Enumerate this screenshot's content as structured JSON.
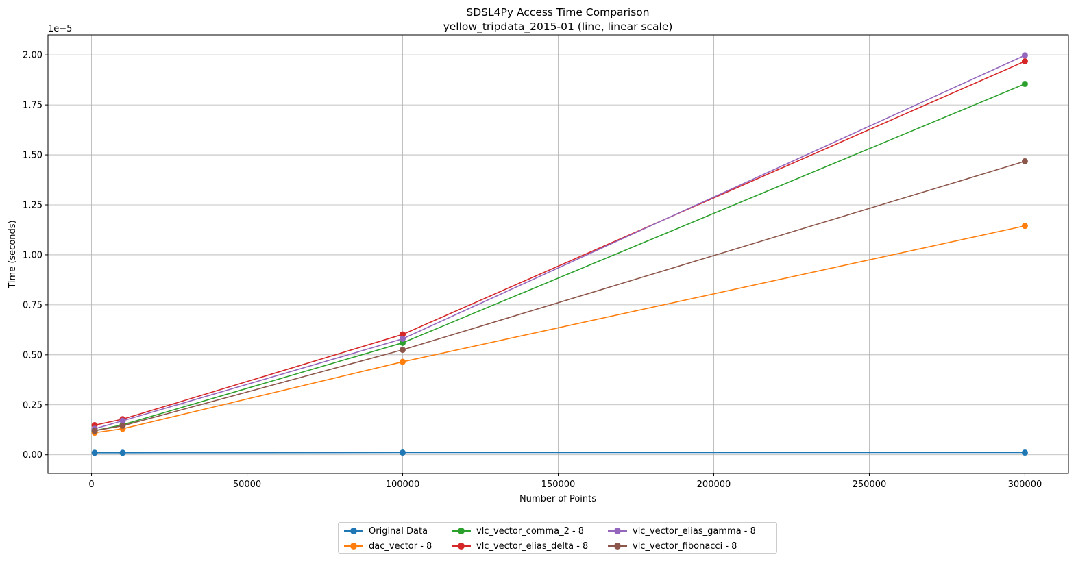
{
  "chart_data": {
    "type": "line",
    "title": "SDSL4Py Access Time Comparison",
    "subtitle": "yellow_tripdata_2015-01 (line, linear scale)",
    "xlabel": "Number of Points",
    "ylabel": "Time (seconds)",
    "y_offset_text": "1e−5",
    "x": [
      1000,
      10000,
      100000,
      300000
    ],
    "xlim": [
      -14000,
      314000
    ],
    "ylim": [
      -9.35e-07,
      2.1e-05
    ],
    "xticks": [
      0,
      50000,
      100000,
      150000,
      200000,
      250000,
      300000
    ],
    "xtick_labels": [
      "0",
      "50000",
      "100000",
      "150000",
      "200000",
      "250000",
      "300000"
    ],
    "yticks": [
      0,
      2.5e-06,
      5e-06,
      7.5e-06,
      1e-05,
      1.25e-05,
      1.5e-05,
      1.75e-05,
      2e-05
    ],
    "ytick_labels": [
      "0.00",
      "0.25",
      "0.50",
      "0.75",
      "1.00",
      "1.25",
      "1.50",
      "1.75",
      "2.00"
    ],
    "grid": true,
    "legend_position": "bottom-center",
    "series": [
      {
        "name": "Original Data",
        "color": "#1f77b4",
        "values": [
          1e-07,
          1e-07,
          1.1e-07,
          1.1e-07
        ]
      },
      {
        "name": "dac_vector - 8",
        "color": "#ff7f0e",
        "values": [
          1.1e-06,
          1.3e-06,
          4.65e-06,
          1.145e-05
        ]
      },
      {
        "name": "vlc_vector_comma_2 - 8",
        "color": "#2ca02c",
        "values": [
          1.2e-06,
          1.5e-06,
          5.6e-06,
          1.855e-05
        ]
      },
      {
        "name": "vlc_vector_elias_delta - 8",
        "color": "#d62728",
        "values": [
          1.48e-06,
          1.78e-06,
          6.02e-06,
          1.968e-05
        ]
      },
      {
        "name": "vlc_vector_elias_gamma - 8",
        "color": "#9467bd",
        "values": [
          1.3e-06,
          1.7e-06,
          5.8e-06,
          1.998e-05
        ]
      },
      {
        "name": "vlc_vector_fibonacci - 8",
        "color": "#8c564b",
        "values": [
          1.2e-06,
          1.45e-06,
          5.25e-06,
          1.468e-05
        ]
      }
    ]
  }
}
